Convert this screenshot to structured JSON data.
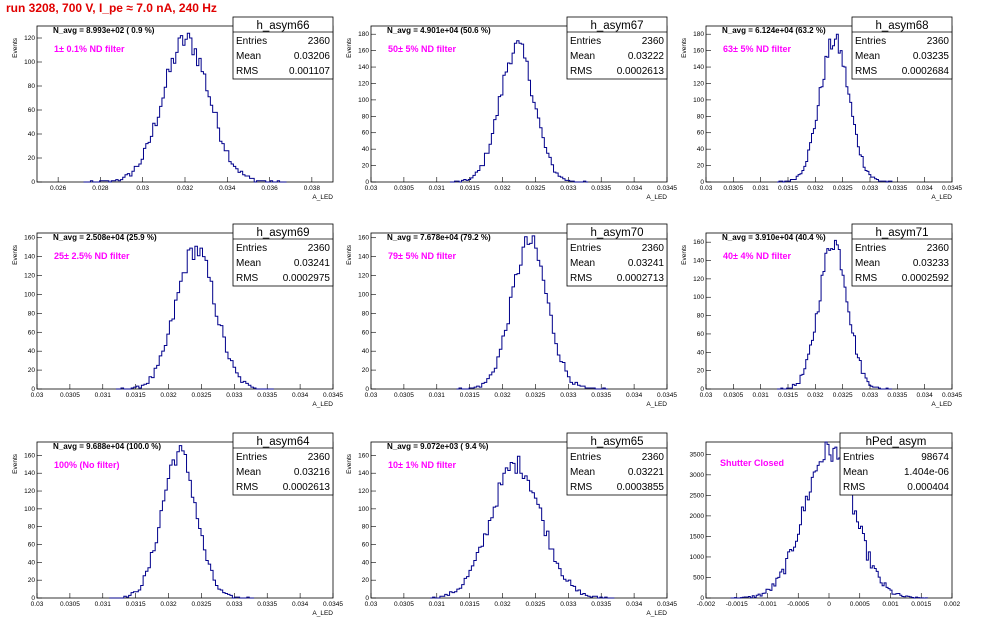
{
  "title": "run 3208,   700 V, I_pe ≈ 7.0 nA, 240 Hz",
  "stat_labels": {
    "entries": "Entries",
    "mean": "Mean",
    "rms": "RMS"
  },
  "colors": {
    "title": "#e00000",
    "hist": "#00008b",
    "annotation": "#ff00ff",
    "axis": "#000000"
  },
  "chart_data": [
    {
      "type": "histogram",
      "name": "h_asym66",
      "entries": "2360",
      "mean": "0.03206",
      "rms": "0.001107",
      "avg_text": "N_avg = 8.993e+02 ( 0.9 %)",
      "filter_text": "1± 0.1% ND filter",
      "ylabel": "Events",
      "xlabel": "A_LED",
      "xlim": [
        0.025,
        0.039
      ],
      "ylim": [
        0,
        130
      ],
      "xticks": [
        0.026,
        0.028,
        0.03,
        0.032,
        0.034,
        0.036,
        0.038
      ],
      "xtick_labels": [
        "0.026",
        "0.028",
        "0.03",
        "0.032",
        "0.034",
        "0.036",
        "0.038"
      ],
      "yticks": [
        0,
        20,
        40,
        60,
        80,
        100,
        120
      ],
      "distribution": {
        "mean": 0.03206,
        "rms": 0.001107,
        "peak": 118,
        "bins": 88,
        "xmin": 0.0272,
        "xmax": 0.0368
      }
    },
    {
      "type": "histogram",
      "name": "h_asym67",
      "entries": "2360",
      "mean": "0.03222",
      "rms": "0.0002613",
      "avg_text": "N_avg = 4.901e+04 (50.6 %)",
      "filter_text": "50± 5% ND filter",
      "ylabel": "Events",
      "xlabel": "A_LED",
      "xlim": [
        0.03,
        0.0345
      ],
      "ylim": [
        0,
        190
      ],
      "xticks": [
        0.03,
        0.0305,
        0.031,
        0.0315,
        0.032,
        0.0325,
        0.033,
        0.0335,
        0.034,
        0.0345
      ],
      "xtick_labels": [
        "0.03",
        "0.0305",
        "0.031",
        "0.0315",
        "0.032",
        "0.0325",
        "0.033",
        "0.0335",
        "0.034",
        "0.0345"
      ],
      "yticks": [
        0,
        20,
        40,
        60,
        80,
        100,
        120,
        140,
        160,
        180
      ],
      "distribution": {
        "mean": 0.03222,
        "rms": 0.0002613,
        "peak": 165,
        "bins": 60,
        "xmin": 0.0312,
        "xmax": 0.0333
      }
    },
    {
      "type": "histogram",
      "name": "h_asym68",
      "entries": "2360",
      "mean": "0.03235",
      "rms": "0.0002684",
      "avg_text": "N_avg = 6.124e+04 (63.2 %)",
      "filter_text": "63± 5% ND filter",
      "ylabel": "Events",
      "xlabel": "A_LED",
      "xlim": [
        0.03,
        0.0345
      ],
      "ylim": [
        0,
        190
      ],
      "xticks": [
        0.03,
        0.0305,
        0.031,
        0.0315,
        0.032,
        0.0325,
        0.033,
        0.0335,
        0.034,
        0.0345
      ],
      "xtick_labels": [
        "0.03",
        "0.0305",
        "0.031",
        "0.0315",
        "0.032",
        "0.0325",
        "0.033",
        "0.0335",
        "0.034",
        "0.0345"
      ],
      "yticks": [
        0,
        20,
        40,
        60,
        80,
        100,
        120,
        140,
        160,
        180
      ],
      "distribution": {
        "mean": 0.03235,
        "rms": 0.0002684,
        "peak": 172,
        "bins": 60,
        "xmin": 0.0313,
        "xmax": 0.0334
      }
    },
    {
      "type": "histogram",
      "name": "h_asym69",
      "entries": "2360",
      "mean": "0.03241",
      "rms": "0.0002975",
      "avg_text": "N_avg = 2.508e+04 (25.9 %)",
      "filter_text": "25± 2.5% ND filter",
      "ylabel": "Events",
      "xlabel": "A_LED",
      "xlim": [
        0.03,
        0.0345
      ],
      "ylim": [
        0,
        165
      ],
      "xticks": [
        0.03,
        0.0305,
        0.031,
        0.0315,
        0.032,
        0.0325,
        0.033,
        0.0335,
        0.034,
        0.0345
      ],
      "xtick_labels": [
        "0.03",
        "0.0305",
        "0.031",
        "0.0315",
        "0.032",
        "0.0325",
        "0.033",
        "0.0335",
        "0.034",
        "0.0345"
      ],
      "yticks": [
        0,
        20,
        40,
        60,
        80,
        100,
        120,
        140,
        160
      ],
      "distribution": {
        "mean": 0.03241,
        "rms": 0.0002975,
        "peak": 148,
        "bins": 62,
        "xmin": 0.0312,
        "xmax": 0.0336
      }
    },
    {
      "type": "histogram",
      "name": "h_asym70",
      "entries": "2360",
      "mean": "0.03241",
      "rms": "0.0002713",
      "avg_text": "N_avg = 7.678e+04 (79.2 %)",
      "filter_text": "79± 5% ND filter",
      "ylabel": "Events",
      "xlabel": "A_LED",
      "xlim": [
        0.03,
        0.0345
      ],
      "ylim": [
        0,
        165
      ],
      "xticks": [
        0.03,
        0.0305,
        0.031,
        0.0315,
        0.032,
        0.0325,
        0.033,
        0.0335,
        0.034,
        0.0345
      ],
      "xtick_labels": [
        "0.03",
        "0.0305",
        "0.031",
        "0.0315",
        "0.032",
        "0.0325",
        "0.033",
        "0.0335",
        "0.034",
        "0.0345"
      ],
      "yticks": [
        0,
        20,
        40,
        60,
        80,
        100,
        120,
        140,
        160
      ],
      "distribution": {
        "mean": 0.03241,
        "rms": 0.0002713,
        "peak": 155,
        "bins": 60,
        "xmin": 0.0313,
        "xmax": 0.0336
      }
    },
    {
      "type": "histogram",
      "name": "h_asym71",
      "entries": "2360",
      "mean": "0.03233",
      "rms": "0.0002592",
      "avg_text": "N_avg = 3.910e+04 (40.4 %)",
      "filter_text": "40± 4% ND filter",
      "ylabel": "Events",
      "xlabel": "A_LED",
      "xlim": [
        0.03,
        0.0345
      ],
      "ylim": [
        0,
        170
      ],
      "xticks": [
        0.03,
        0.0305,
        0.031,
        0.0315,
        0.032,
        0.0325,
        0.033,
        0.0335,
        0.034,
        0.0345
      ],
      "xtick_labels": [
        "0.03",
        "0.0305",
        "0.031",
        "0.0315",
        "0.032",
        "0.0325",
        "0.033",
        "0.0335",
        "0.034",
        "0.0345"
      ],
      "yticks": [
        0,
        20,
        40,
        60,
        80,
        100,
        120,
        140,
        160
      ],
      "distribution": {
        "mean": 0.03233,
        "rms": 0.0002592,
        "peak": 162,
        "bins": 60,
        "xmin": 0.0313,
        "xmax": 0.0334
      }
    },
    {
      "type": "histogram",
      "name": "h_asym64",
      "entries": "2360",
      "mean": "0.03216",
      "rms": "0.0002613",
      "avg_text": "N_avg = 9.688e+04 (100.0 %)",
      "filter_text": "100% (No filter)",
      "ylabel": "Events",
      "xlabel": "A_LED",
      "xlim": [
        0.03,
        0.0345
      ],
      "ylim": [
        0,
        175
      ],
      "xticks": [
        0.03,
        0.0305,
        0.031,
        0.0315,
        0.032,
        0.0325,
        0.033,
        0.0335,
        0.034,
        0.0345
      ],
      "xtick_labels": [
        "0.03",
        "0.0305",
        "0.031",
        "0.0315",
        "0.032",
        "0.0325",
        "0.033",
        "0.0335",
        "0.034",
        "0.0345"
      ],
      "yticks": [
        0,
        20,
        40,
        60,
        80,
        100,
        120,
        140,
        160
      ],
      "distribution": {
        "mean": 0.03216,
        "rms": 0.0002613,
        "peak": 163,
        "bins": 60,
        "xmin": 0.0311,
        "xmax": 0.0333
      }
    },
    {
      "type": "histogram",
      "name": "h_asym65",
      "entries": "2360",
      "mean": "0.03221",
      "rms": "0.0003855",
      "avg_text": "N_avg = 9.072e+03 ( 9.4 %)",
      "filter_text": "10± 1% ND filter",
      "ylabel": "Events",
      "xlabel": "A_LED",
      "xlim": [
        0.03,
        0.0345
      ],
      "ylim": [
        0,
        175
      ],
      "xticks": [
        0.03,
        0.0305,
        0.031,
        0.0315,
        0.032,
        0.0325,
        0.033,
        0.0335,
        0.034,
        0.0345
      ],
      "xtick_labels": [
        "0.03",
        "0.0305",
        "0.031",
        "0.0315",
        "0.032",
        "0.0325",
        "0.033",
        "0.0335",
        "0.034",
        "0.0345"
      ],
      "yticks": [
        0,
        20,
        40,
        60,
        80,
        100,
        120,
        140,
        160
      ],
      "distribution": {
        "mean": 0.03221,
        "rms": 0.0003855,
        "peak": 150,
        "bins": 76,
        "xmin": 0.0309,
        "xmax": 0.0337
      }
    },
    {
      "type": "histogram",
      "name": "hPed_asym",
      "entries": "98674",
      "mean": "1.404e-06",
      "rms": "0.000404",
      "avg_text": "",
      "filter_text": "Shutter Closed",
      "ylabel": "",
      "xlabel": "",
      "xlim": [
        -0.002,
        0.002
      ],
      "ylim": [
        0,
        3800
      ],
      "xticks": [
        -0.002,
        -0.0015,
        -0.001,
        -0.0005,
        0,
        0.0005,
        0.001,
        0.0015,
        0.002
      ],
      "xtick_labels": [
        "-0.002",
        "-0.0015",
        "-0.001",
        "-0.0005",
        "0",
        "0.0005",
        "0.001",
        "0.0015",
        "0.002"
      ],
      "yticks": [
        0,
        500,
        1000,
        1500,
        2000,
        2500,
        3000,
        3500
      ],
      "distribution": {
        "mean": 1.4e-06,
        "rms": 0.000404,
        "peak": 3600,
        "bins": 100,
        "xmin": -0.0016,
        "xmax": 0.0016
      }
    }
  ]
}
